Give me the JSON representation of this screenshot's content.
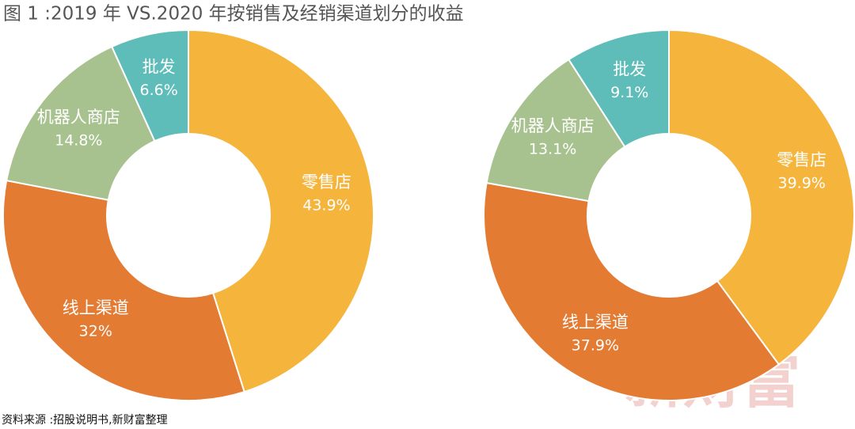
{
  "title": "图 1 :2019 年 VS.2020 年按销售及经销渠道划分的收益",
  "source": "资料来源 :招股说明书,新财富整理",
  "watermark": "新財富",
  "chart_data": [
    {
      "type": "pie",
      "categories": [
        "零售店",
        "线上渠道",
        "机器人商店",
        "批发"
      ],
      "values": [
        43.9,
        32,
        14.8,
        6.6
      ],
      "value_labels": [
        "43.9%",
        "32%",
        "14.8%",
        "6.6%"
      ],
      "colors": [
        "#f5b43c",
        "#e47b33",
        "#a8c28f",
        "#5ebdb9"
      ]
    },
    {
      "type": "pie",
      "categories": [
        "零售店",
        "线上渠道",
        "机器人商店",
        "批发"
      ],
      "values": [
        39.9,
        37.9,
        13.1,
        9.1
      ],
      "value_labels": [
        "39.9%",
        "37.9%",
        "13.1%",
        "9.1%"
      ],
      "colors": [
        "#f5b43c",
        "#e47b33",
        "#a8c28f",
        "#5ebdb9"
      ]
    }
  ]
}
